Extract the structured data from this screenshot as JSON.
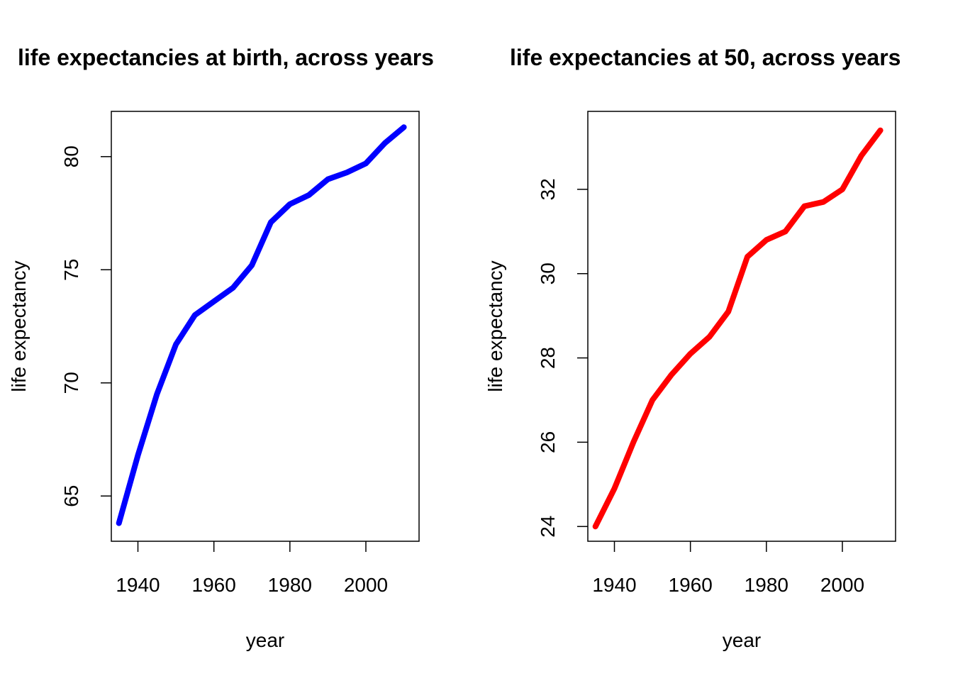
{
  "chart_data": [
    {
      "type": "line",
      "title": "life expectancies at birth, across years",
      "xlabel": "year",
      "ylabel": "life expectancy",
      "xlim": [
        1933,
        2014
      ],
      "ylim": [
        63,
        82
      ],
      "xticks": [
        1940,
        1960,
        1980,
        2000
      ],
      "yticks": [
        65,
        70,
        75,
        80
      ],
      "grid": false,
      "series": [
        {
          "color": "#0000ff",
          "x": [
            1935,
            1940,
            1945,
            1950,
            1955,
            1960,
            1965,
            1970,
            1975,
            1980,
            1985,
            1990,
            1995,
            2000,
            2005,
            2010
          ],
          "y": [
            63.8,
            66.8,
            69.5,
            71.7,
            73.0,
            73.6,
            74.2,
            75.2,
            77.1,
            77.9,
            78.3,
            79.0,
            79.3,
            79.7,
            80.6,
            81.3
          ]
        }
      ]
    },
    {
      "type": "line",
      "title": "life expectancies at 50, across years",
      "xlabel": "year",
      "ylabel": "life expectancy",
      "xlim": [
        1933,
        2014
      ],
      "ylim": [
        23.65,
        33.85
      ],
      "xticks": [
        1940,
        1960,
        1980,
        2000
      ],
      "yticks": [
        24,
        26,
        28,
        30,
        32
      ],
      "grid": false,
      "series": [
        {
          "color": "#ff0000",
          "x": [
            1935,
            1940,
            1945,
            1950,
            1955,
            1960,
            1965,
            1970,
            1975,
            1980,
            1985,
            1990,
            1995,
            2000,
            2005,
            2010
          ],
          "y": [
            24.0,
            24.9,
            26.0,
            27.0,
            27.6,
            28.1,
            28.5,
            29.1,
            30.4,
            30.8,
            31.0,
            31.6,
            31.7,
            32.0,
            32.8,
            33.4
          ]
        }
      ]
    }
  ]
}
